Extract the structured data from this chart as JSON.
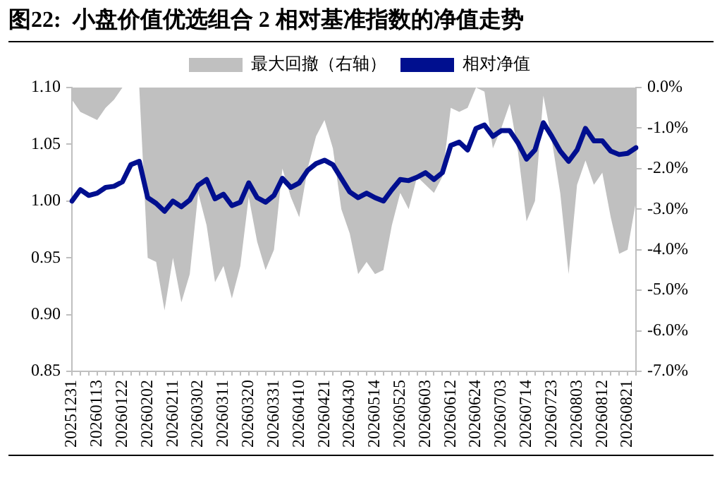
{
  "chart_data": {
    "type": "line",
    "title": "图22:  小盘价值优选组合 2 相对基准指数的净值走势",
    "categories": [
      "20251231",
      null,
      null,
      "20260113",
      null,
      null,
      "20260122",
      null,
      null,
      "20260202",
      null,
      null,
      "20260211",
      null,
      null,
      "20260302",
      null,
      null,
      "20260311",
      null,
      null,
      "20260320",
      null,
      null,
      "20260331",
      null,
      null,
      "20260410",
      null,
      null,
      "20260421",
      null,
      null,
      "20260430",
      null,
      null,
      "20260514",
      null,
      null,
      "20260525",
      null,
      null,
      "20260603",
      null,
      null,
      "20260612",
      null,
      null,
      "20260624",
      null,
      null,
      "20260703",
      null,
      null,
      "20260714",
      null,
      null,
      "20260723",
      null,
      null,
      "20260803",
      null,
      null,
      "20260812",
      null,
      null,
      "20260821",
      null
    ],
    "series": [
      {
        "name": "最大回撤（右轴）",
        "type": "area",
        "axis": "y2",
        "color": "#c0c0c0",
        "values": [
          -0.3,
          -0.6,
          -0.7,
          -0.8,
          -0.5,
          -0.3,
          0,
          0,
          0,
          -4.2,
          -4.3,
          -5.5,
          -4.2,
          -5.3,
          -4.6,
          -2.6,
          -3.4,
          -4.8,
          -4.4,
          -5.2,
          -4.4,
          -2.7,
          -3.8,
          -4.5,
          -4.0,
          -2.0,
          -2.7,
          -3.2,
          -2.0,
          -1.2,
          -0.8,
          -1.5,
          -3.0,
          -3.6,
          -4.6,
          -4.3,
          -4.6,
          -4.5,
          -3.4,
          -2.6,
          -3.0,
          -2.2,
          -2.4,
          -2.6,
          -2.2,
          -0.5,
          -0.6,
          -0.5,
          0,
          -0.1,
          -1.5,
          -1.0,
          -0.4,
          -1.6,
          -3.3,
          -2.8,
          -0.2,
          -1.3,
          -2.6,
          -4.6,
          -2.4,
          -1.8,
          -2.4,
          -2.1,
          -3.2,
          -4.1,
          -4.0,
          -2.8
        ]
      },
      {
        "name": "相对净值",
        "type": "line",
        "color": "#000f8f",
        "values": [
          1.0,
          1.01,
          1.005,
          1.007,
          1.012,
          1.013,
          1.017,
          1.032,
          1.035,
          1.003,
          0.998,
          0.991,
          1.0,
          0.995,
          1.001,
          1.014,
          1.019,
          1.002,
          1.006,
          0.996,
          0.999,
          1.016,
          1.003,
          0.999,
          1.005,
          1.02,
          1.012,
          1.016,
          1.027,
          1.033,
          1.036,
          1.032,
          1.02,
          1.008,
          1.003,
          1.007,
          1.003,
          1.0,
          1.01,
          1.019,
          1.018,
          1.021,
          1.025,
          1.019,
          1.025,
          1.049,
          1.052,
          1.045,
          1.064,
          1.067,
          1.057,
          1.062,
          1.062,
          1.051,
          1.037,
          1.045,
          1.069,
          1.057,
          1.044,
          1.035,
          1.045,
          1.064,
          1.053,
          1.053,
          1.044,
          1.041,
          1.042,
          1.047
        ]
      }
    ],
    "ylim": [
      0.85,
      1.1
    ],
    "yticks": [
      {
        "value": 0.85,
        "label": "0.85"
      },
      {
        "value": 0.9,
        "label": "0.90"
      },
      {
        "value": 0.95,
        "label": "0.95"
      },
      {
        "value": 1.0,
        "label": "1.00"
      },
      {
        "value": 1.05,
        "label": "1.05"
      },
      {
        "value": 1.1,
        "label": "1.10"
      }
    ],
    "y2lim": [
      -7,
      0
    ],
    "y2ticks": [
      {
        "value": -7,
        "label": "-7.0%"
      },
      {
        "value": -6,
        "label": "-6.0%"
      },
      {
        "value": -5,
        "label": "-5.0%"
      },
      {
        "value": -4,
        "label": "-4.0%"
      },
      {
        "value": -3,
        "label": "-3.0%"
      },
      {
        "value": -2,
        "label": "-2.0%"
      },
      {
        "value": -1,
        "label": "-1.0%"
      },
      {
        "value": 0,
        "label": "0.0%"
      }
    ],
    "grid": false,
    "legend": "top",
    "marker": "none",
    "line_style": "solid"
  }
}
